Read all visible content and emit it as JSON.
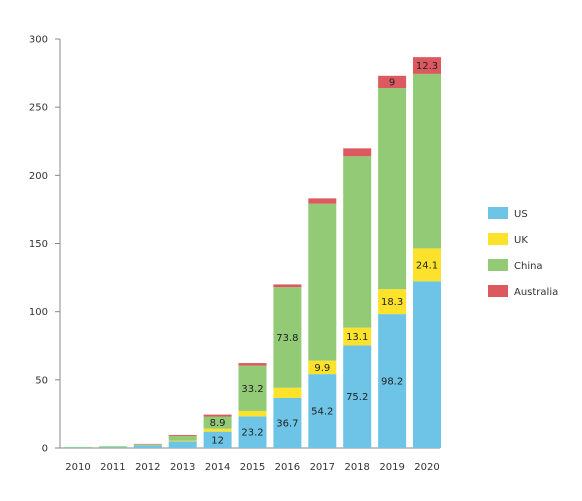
{
  "chart_data": {
    "type": "bar",
    "stacked": true,
    "title": "",
    "xlabel": "",
    "ylabel": "",
    "categories": [
      "2010",
      "2011",
      "2012",
      "2013",
      "2014",
      "2015",
      "2016",
      "2017",
      "2018",
      "2019",
      "2020"
    ],
    "ylim": [
      0,
      300
    ],
    "yticks": [
      0,
      50,
      100,
      150,
      200,
      250,
      300
    ],
    "grid": false,
    "legend": "right",
    "series": [
      {
        "name": "US",
        "color": "#6ec4e6",
        "values": [
          0.6,
          1.0,
          2.2,
          4.8,
          12,
          23.2,
          36.7,
          54.2,
          75.2,
          98.2,
          122.3
        ],
        "labels": [
          null,
          null,
          null,
          null,
          "12",
          "23.2",
          "36.7",
          "54.2",
          "75.2",
          "98.2",
          null
        ]
      },
      {
        "name": "UK",
        "color": "#fde22c",
        "values": [
          0.1,
          0.1,
          0.2,
          0.6,
          2.2,
          4.0,
          7.5,
          9.9,
          13.1,
          18.3,
          24.1
        ],
        "labels": [
          null,
          null,
          null,
          null,
          null,
          null,
          null,
          "9.9",
          "13.1",
          "18.3",
          "24.1"
        ]
      },
      {
        "name": "China",
        "color": "#92ca76",
        "values": [
          0.1,
          0.3,
          0.5,
          3.3,
          8.9,
          33.2,
          73.8,
          115.1,
          125.7,
          147.5,
          128.0
        ],
        "labels": [
          null,
          null,
          null,
          null,
          "8.9",
          "33.2",
          "73.8",
          null,
          null,
          null,
          null
        ]
      },
      {
        "name": "Australia",
        "color": "#dc5a5f",
        "values": [
          0.0,
          0.0,
          0.1,
          0.8,
          1.4,
          1.9,
          2.0,
          3.9,
          5.8,
          9.0,
          12.3
        ],
        "labels": [
          null,
          null,
          null,
          null,
          null,
          null,
          null,
          null,
          null,
          "9",
          "12.3"
        ]
      }
    ]
  }
}
